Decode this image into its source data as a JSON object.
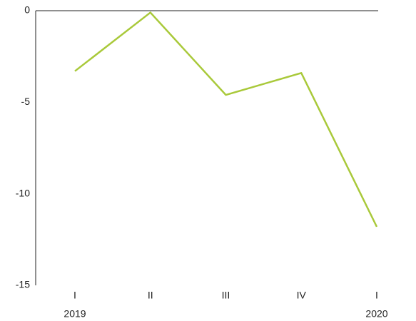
{
  "chart_data": {
    "type": "line",
    "categories": [
      "I",
      "II",
      "III",
      "IV",
      "I"
    ],
    "year_labels": [
      "2019",
      null,
      null,
      null,
      "2020"
    ],
    "series": [
      {
        "color": "#a9c93a",
        "values": [
          -3.3,
          -0.1,
          -4.6,
          -3.4,
          -11.8
        ]
      }
    ],
    "ylim": [
      -15,
      0
    ],
    "yticks": [
      0,
      -5,
      -10,
      -15
    ],
    "grid": false
  }
}
